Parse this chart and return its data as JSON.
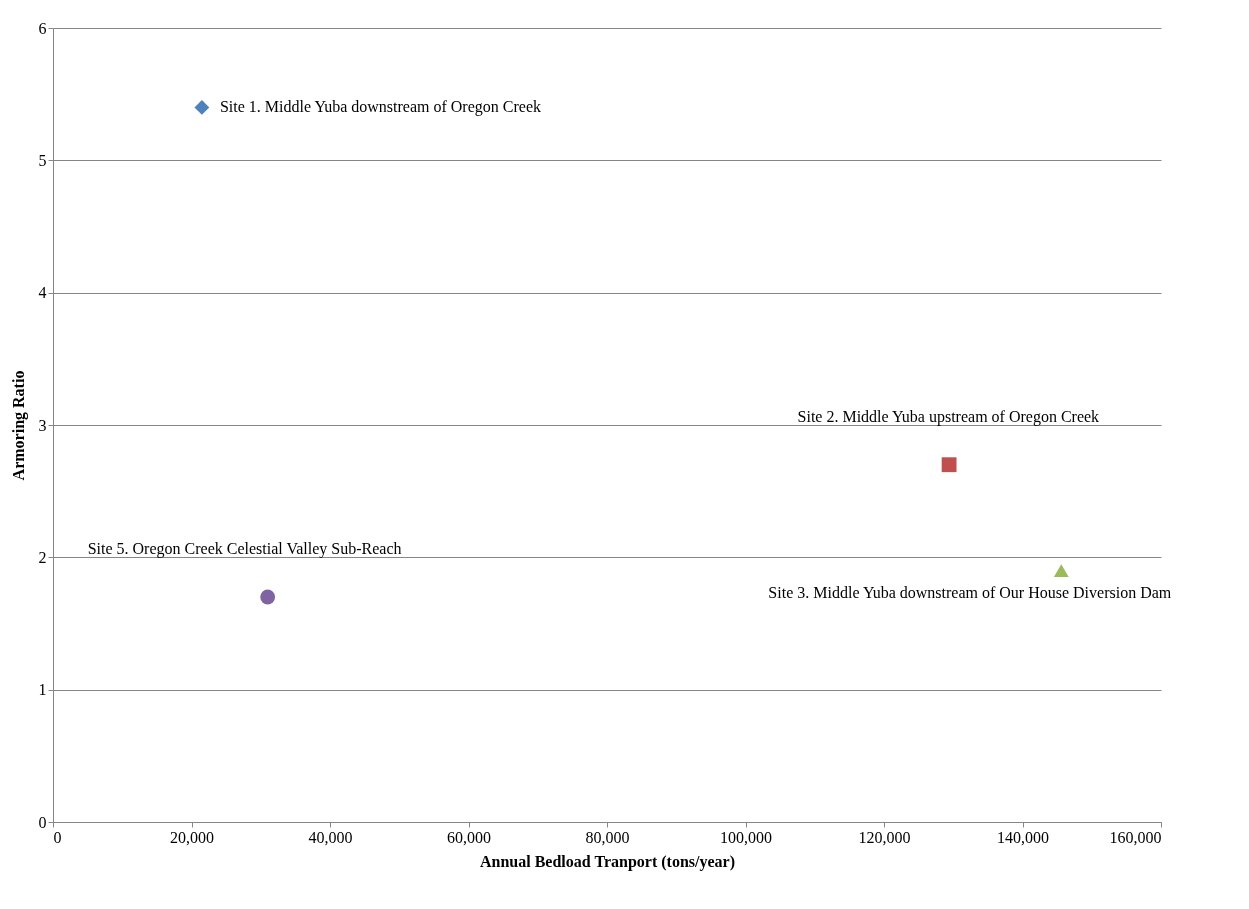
{
  "chart_data": {
    "type": "scatter",
    "xlabel": "Annual  Bedload Tranport  (tons/year)",
    "ylabel": "Armoring  Ratio",
    "xlim": [
      0,
      160000
    ],
    "ylim": [
      0,
      6
    ],
    "xticks": [
      0,
      {
        "value": 20000,
        "label": "20,000"
      },
      {
        "value": 40000,
        "label": "40,000"
      },
      {
        "value": 60000,
        "label": "60,000"
      },
      {
        "value": 80000,
        "label": "80,000"
      },
      {
        "value": 100000,
        "label": "100,000"
      },
      {
        "value": 120000,
        "label": "120,000"
      },
      {
        "value": 140000,
        "label": "140,000"
      },
      {
        "value": 160000,
        "label": "160,000"
      }
    ],
    "yticks": [
      0,
      1,
      2,
      3,
      4,
      5,
      6
    ],
    "grid": "y",
    "series": [
      {
        "name": "Site 1.  Middle  Yuba downstream of Oregon Creek",
        "color": "#4f81bd",
        "marker": "diamond",
        "x": [
          21500
        ],
        "values": [
          5.4
        ]
      },
      {
        "name": "Site 2.  Middle  Yuba upstream of Oregon Creek",
        "color": "#c0504d",
        "marker": "square",
        "x": [
          129400
        ],
        "values": [
          2.7
        ]
      },
      {
        "name": "Site 3.  Middle  Yuba downstream of Our House Diversion Dam",
        "color": "#9bbb59",
        "marker": "triangle",
        "x": [
          145600
        ],
        "values": [
          1.9
        ]
      },
      {
        "name": "Site 5.  Oregon Creek Celestial Valley Sub-Reach",
        "color": "#8064a2",
        "marker": "circle",
        "x": [
          31000
        ],
        "values": [
          1.7
        ]
      }
    ]
  }
}
